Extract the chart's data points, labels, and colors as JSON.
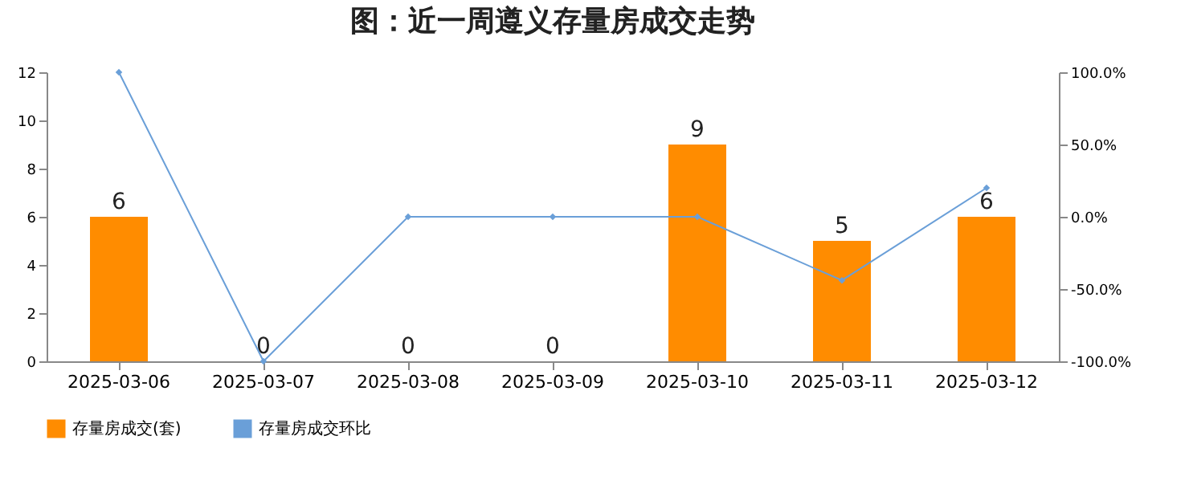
{
  "chart_data": {
    "type": "bar",
    "title": "图：近一周遵义存量房成交走势",
    "categories": [
      "2025-03-06",
      "2025-03-07",
      "2025-03-08",
      "2025-03-09",
      "2025-03-10",
      "2025-03-11",
      "2025-03-12"
    ],
    "series": [
      {
        "name": "存量房成交(套)",
        "color": "#ff8c00",
        "values": [
          6,
          0,
          0,
          0,
          9,
          5,
          6
        ],
        "value_labels": [
          "6",
          "0",
          "0",
          "0",
          "9",
          "5",
          "6"
        ]
      },
      {
        "name": "存量房成交环比",
        "type": "line",
        "axis": "y2",
        "color": "#6a9fd8",
        "marker": "diamond",
        "values": [
          100,
          -100,
          0,
          0,
          0,
          -44,
          20
        ]
      }
    ],
    "ylim": [
      0,
      12
    ],
    "yticks": [
      0,
      2,
      4,
      6,
      8,
      10,
      12
    ],
    "y2lim": [
      -100,
      100
    ],
    "y2ticks": [
      {
        "value": -100,
        "label": "-100.0%"
      },
      {
        "value": -50,
        "label": "-50.0%"
      },
      {
        "value": 0,
        "label": "0.0%"
      },
      {
        "value": 50,
        "label": "50.0%"
      },
      {
        "value": 100,
        "label": "100.0%"
      }
    ],
    "grid": false,
    "legend": "bottom"
  }
}
